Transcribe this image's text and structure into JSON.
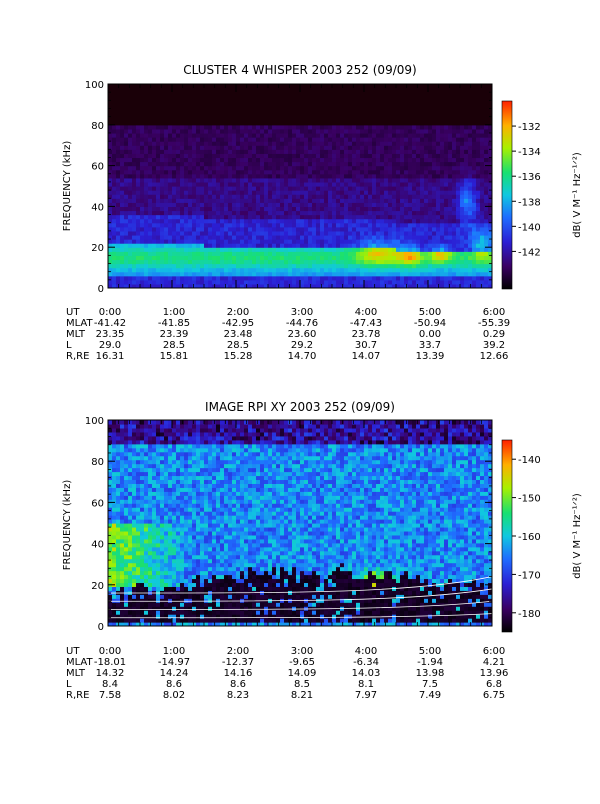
{
  "chart_data": [
    {
      "type": "heatmap",
      "title": "CLUSTER 4 WHISPER 2003 252 (09/09)",
      "ylabel": "FREQUENCY (kHz)",
      "colorbar_label": "dB( V M⁻¹ Hz⁻¹ᐟ²)",
      "ylim": [
        0,
        100
      ],
      "yticks": [
        "0",
        "20",
        "40",
        "60",
        "80",
        "100"
      ],
      "xticks": [
        "0:00",
        "1:00",
        "2:00",
        "3:00",
        "4:00",
        "5:00",
        "6:00"
      ],
      "zlim": [
        -145,
        -130
      ],
      "colorbar_ticks": [
        "-132",
        "-134",
        "-136",
        "-138",
        "-140",
        "-142"
      ],
      "ephemeris": [
        {
          "label": "UT",
          "values": [
            "0:00",
            "1:00",
            "2:00",
            "3:00",
            "4:00",
            "5:00",
            "6:00"
          ]
        },
        {
          "label": "MLAT",
          "values": [
            "-41.42",
            "-41.85",
            "-42.95",
            "-44.76",
            "-47.43",
            "-50.94",
            "-55.39"
          ]
        },
        {
          "label": "MLT",
          "values": [
            "23.35",
            "23.39",
            "23.48",
            "23.60",
            "23.78",
            "0.00",
            "0.29"
          ]
        },
        {
          "label": "L",
          "values": [
            "29.0",
            "28.5",
            "28.5",
            "29.2",
            "30.7",
            "33.7",
            "39.2"
          ]
        },
        {
          "label": "R,RE",
          "values": [
            "16.31",
            "15.81",
            "15.28",
            "14.70",
            "14.07",
            "13.39",
            "12.66"
          ]
        }
      ]
    },
    {
      "type": "heatmap",
      "title": "IMAGE RPI XY 2003 252 (09/09)",
      "ylabel": "FREQUENCY (kHz)",
      "colorbar_label": "dB( V M⁻¹ Hz⁻¹ᐟ²)",
      "ylim": [
        0,
        100
      ],
      "yticks": [
        "0",
        "20",
        "40",
        "60",
        "80",
        "100"
      ],
      "xticks": [
        "0:00",
        "1:00",
        "2:00",
        "3:00",
        "4:00",
        "5:00",
        "6:00"
      ],
      "zlim": [
        -185,
        -135
      ],
      "colorbar_ticks": [
        "-140",
        "-150",
        "-160",
        "-170",
        "-180"
      ],
      "ephemeris": [
        {
          "label": "UT",
          "values": [
            "0:00",
            "1:00",
            "2:00",
            "3:00",
            "4:00",
            "5:00",
            "6:00"
          ]
        },
        {
          "label": "MLAT",
          "values": [
            "-18.01",
            "-14.97",
            "-12.37",
            "-9.65",
            "-6.34",
            "-1.94",
            "4.21"
          ]
        },
        {
          "label": "MLT",
          "values": [
            "14.32",
            "14.24",
            "14.16",
            "14.09",
            "14.03",
            "13.98",
            "13.96"
          ]
        },
        {
          "label": "L",
          "values": [
            "8.4",
            "8.6",
            "8.6",
            "8.5",
            "8.1",
            "7.5",
            "6.8"
          ]
        },
        {
          "label": "R,RE",
          "values": [
            "7.58",
            "8.02",
            "8.23",
            "8.21",
            "7.97",
            "7.49",
            "6.75"
          ]
        }
      ]
    }
  ]
}
